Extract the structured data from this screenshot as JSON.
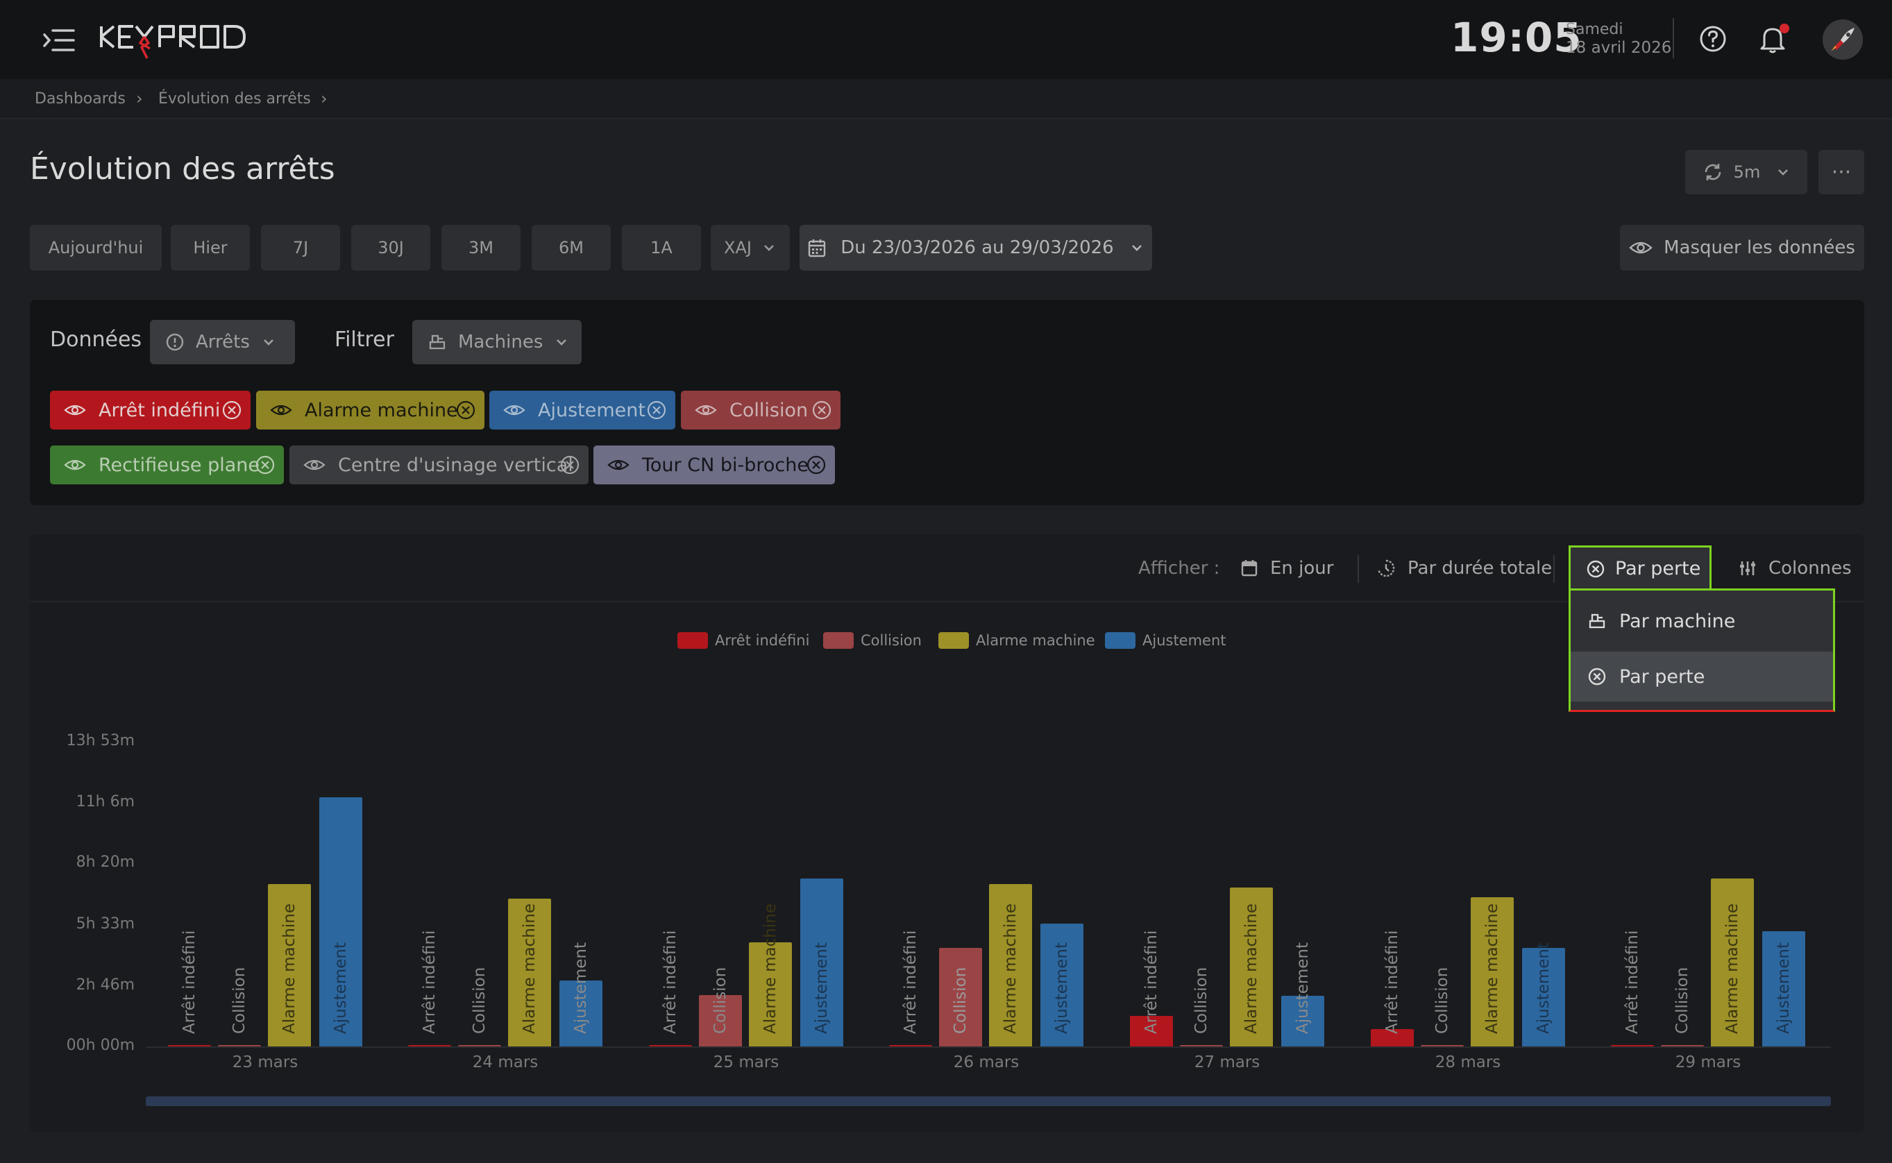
{
  "header": {
    "logo_text": "KEYPROD",
    "time": "19:05",
    "date_day": "Samedi",
    "date_full": "18 avril 2026"
  },
  "breadcrumb": {
    "items": [
      "Dashboards",
      "Évolution des arrêts"
    ]
  },
  "page": {
    "title": "Évolution des arrêts",
    "refresh_label": "5m",
    "more_label": "···"
  },
  "periods": [
    "Aujourd'hui",
    "Hier",
    "7J",
    "30J",
    "3M",
    "6M",
    "1A",
    "XAJ"
  ],
  "date_range": "Du 23/03/2026 au 29/03/2026",
  "mask_label": "Masquer les données",
  "filters": {
    "data_label": "Données",
    "data_value": "Arrêts",
    "filter_label": "Filtrer",
    "filter_value": "Machines",
    "loss_chips": [
      {
        "label": "Arrêt indéfini",
        "color": "#b3171d"
      },
      {
        "label": "Alarme machine",
        "color": "#8e8424"
      },
      {
        "label": "Ajustement",
        "color": "#2b5f95"
      },
      {
        "label": "Collision",
        "color": "#8e3c3e"
      }
    ],
    "machine_chips": [
      {
        "label": "Rectifieuse plane",
        "color": "#3d7a31"
      },
      {
        "label": "Centre d'usinage vertical",
        "color": "#3a3b3e"
      },
      {
        "label": "Tour CN bi-broche",
        "color": "#6e6f86"
      }
    ]
  },
  "toolbar": {
    "afficher_label": "Afficher :",
    "day_label": "En jour",
    "duration_label": "Par durée totale",
    "active_label": "Par perte",
    "columns_label": "Colonnes"
  },
  "popup_menu": {
    "items": [
      {
        "label": "Par machine",
        "icon": "machine-icon"
      },
      {
        "label": "Par perte",
        "icon": "loss-icon"
      }
    ]
  },
  "colors": {
    "arret": "#b3171d",
    "collision": "#9b4446",
    "alarme": "#9d9128",
    "ajustement": "#2c679f",
    "active_outline": "#7ed321",
    "menu_outline_bottom": "#e02424"
  },
  "chart_data": {
    "type": "bar",
    "categories": [
      "23 mars",
      "24 mars",
      "25 mars",
      "26 mars",
      "27 mars",
      "28 mars",
      "29 mars"
    ],
    "legend": [
      "Arrêt indéfini",
      "Collision",
      "Alarme machine",
      "Ajustement"
    ],
    "series": [
      {
        "name": "Arrêt indéfini",
        "values": [
          0.05,
          0.05,
          0.05,
          0.05,
          1.4,
          0.8,
          0.05
        ]
      },
      {
        "name": "Collision",
        "values": [
          0.05,
          0.05,
          2.35,
          4.5,
          0.05,
          0.05,
          0.05
        ]
      },
      {
        "name": "Alarme machine",
        "values": [
          7.4,
          6.75,
          4.75,
          7.4,
          7.25,
          6.8,
          7.65
        ]
      },
      {
        "name": "Ajustement",
        "values": [
          11.35,
          3.0,
          7.65,
          5.6,
          2.3,
          4.5,
          5.25
        ]
      }
    ],
    "bar_labels": [
      "Arrêt indéfini",
      "Collision",
      "Alarme machine",
      "Ajustement"
    ],
    "y_ticks": [
      "13h 53m",
      "11h 6m",
      "8h 20m",
      "5h 33m",
      "2h 46m",
      "00h 00m"
    ],
    "y_tick_values": [
      13.883,
      11.1,
      8.333,
      5.55,
      2.767,
      0
    ],
    "ylim": [
      0,
      13.883
    ],
    "y_unit": "hours",
    "legend_position": "top-center",
    "grid": false
  }
}
